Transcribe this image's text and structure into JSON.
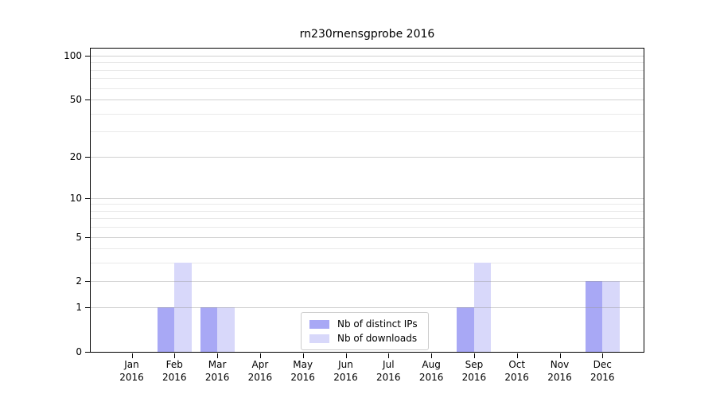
{
  "chart_data": {
    "type": "bar",
    "title": "rn230rnensgprobe 2016",
    "categories": [
      "Jan",
      "Feb",
      "Mar",
      "Apr",
      "May",
      "Jun",
      "Jul",
      "Aug",
      "Sep",
      "Oct",
      "Nov",
      "Dec"
    ],
    "category_year": "2016",
    "series": [
      {
        "name": "Nb of distinct IPs",
        "color": "#a8a8f5",
        "values": [
          0,
          1,
          1,
          0,
          0,
          0,
          0,
          0,
          1,
          0,
          0,
          2
        ]
      },
      {
        "name": "Nb of downloads",
        "color": "#d8d8fa",
        "values": [
          0,
          3,
          1,
          0,
          0,
          0,
          0,
          0,
          3,
          0,
          0,
          2
        ]
      }
    ],
    "yscale": "log10(1+x)",
    "yticks": [
      0,
      1,
      2,
      5,
      10,
      20,
      50,
      100
    ],
    "minor_gridlines": [
      3,
      4,
      6,
      7,
      8,
      9,
      30,
      40,
      60,
      70,
      80,
      90
    ],
    "ylim": [
      0,
      115
    ],
    "xlabel": "",
    "ylabel": "",
    "grid": true,
    "legend_position": "bottom-center"
  }
}
